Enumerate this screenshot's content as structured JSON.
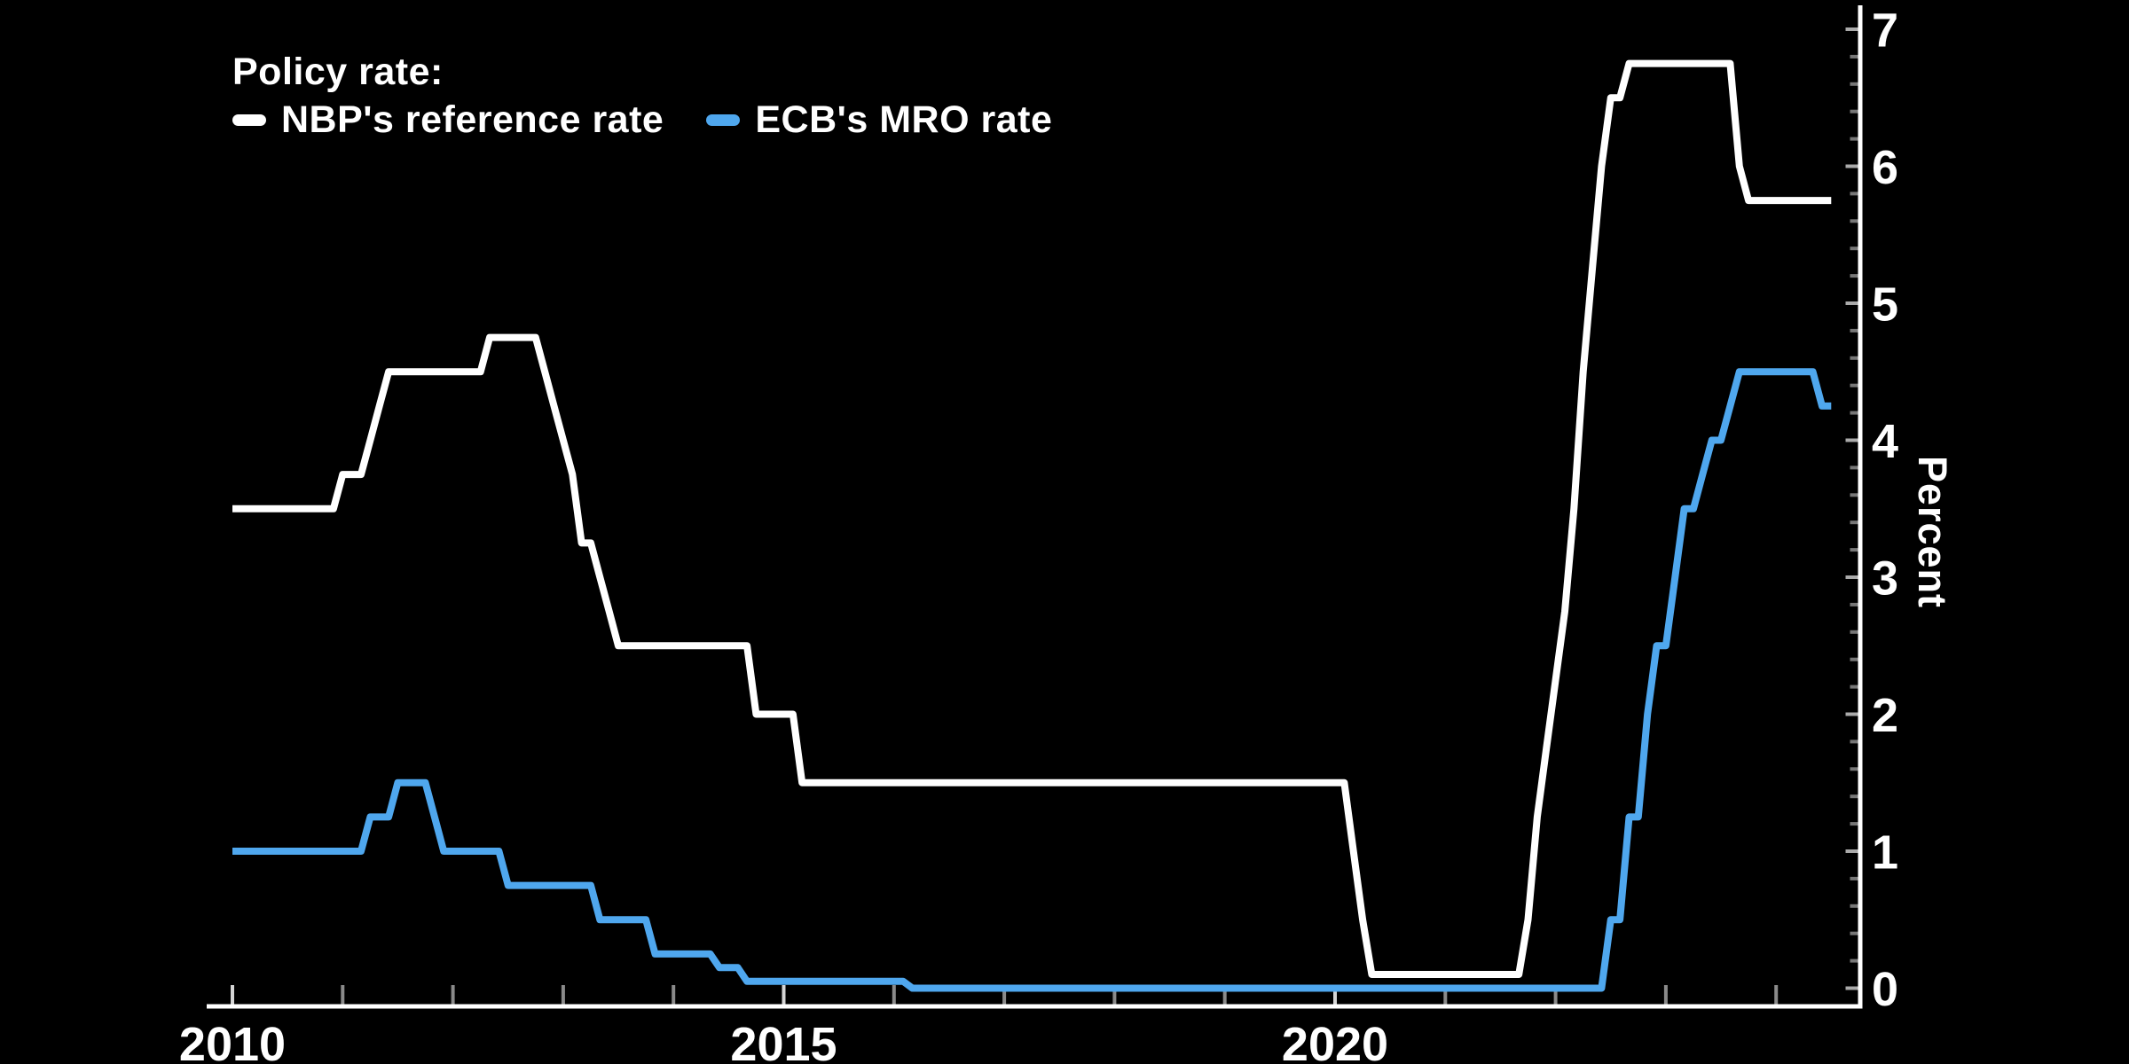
{
  "legend": {
    "title": "Policy rate:",
    "items": [
      {
        "label": "NBP's reference rate",
        "color": "#ffffff"
      },
      {
        "label": "ECB's MRO rate",
        "color": "#4fa7ee"
      }
    ]
  },
  "axes": {
    "y_label": "Percent",
    "y_tick_labels": [
      "0",
      "1",
      "2",
      "3",
      "4",
      "5",
      "6",
      "7"
    ],
    "x_tick_labels": [
      "2010",
      "2015",
      "2020"
    ]
  },
  "chart_data": {
    "type": "line",
    "title": "Policy rate:",
    "ylabel": "Percent",
    "ylim": [
      0,
      7
    ],
    "y_major_step": 1,
    "y_minor_step": 0.2,
    "x_years_start": 2010,
    "x_years_end": 2024,
    "x_labeled_years": [
      2010,
      2015,
      2020
    ],
    "x_end_decimal": 2024.5,
    "legend_position": "top-left",
    "grid": false,
    "background": "#000000",
    "axis_color": "#ffffff",
    "minor_tick_color": "#777777",
    "major_tick_color": "#aaaaaa",
    "series": [
      {
        "name": "NBP's reference rate",
        "color": "#ffffff",
        "rate_changes": [
          [
            "2010-01",
            3.5
          ],
          [
            "2011-01",
            3.75
          ],
          [
            "2011-04",
            4.0
          ],
          [
            "2011-05",
            4.25
          ],
          [
            "2011-06",
            4.5
          ],
          [
            "2012-05",
            4.75
          ],
          [
            "2012-11",
            4.5
          ],
          [
            "2012-12",
            4.25
          ],
          [
            "2013-01",
            4.0
          ],
          [
            "2013-02",
            3.75
          ],
          [
            "2013-03",
            3.25
          ],
          [
            "2013-05",
            3.0
          ],
          [
            "2013-06",
            2.75
          ],
          [
            "2013-07",
            2.5
          ],
          [
            "2014-10",
            2.0
          ],
          [
            "2015-03",
            1.5
          ],
          [
            "2020-03",
            1.0
          ],
          [
            "2020-04",
            0.5
          ],
          [
            "2020-05",
            0.1
          ],
          [
            "2021-10",
            0.5
          ],
          [
            "2021-11",
            1.25
          ],
          [
            "2021-12",
            1.75
          ],
          [
            "2022-01",
            2.25
          ],
          [
            "2022-02",
            2.75
          ],
          [
            "2022-03",
            3.5
          ],
          [
            "2022-04",
            4.5
          ],
          [
            "2022-05",
            5.25
          ],
          [
            "2022-06",
            6.0
          ],
          [
            "2022-07",
            6.5
          ],
          [
            "2022-09",
            6.75
          ],
          [
            "2023-09",
            6.0
          ],
          [
            "2023-10",
            5.75
          ]
        ]
      },
      {
        "name": "ECB's MRO rate",
        "color": "#4fa7ee",
        "rate_changes": [
          [
            "2010-01",
            1.0
          ],
          [
            "2011-04",
            1.25
          ],
          [
            "2011-07",
            1.5
          ],
          [
            "2011-11",
            1.25
          ],
          [
            "2011-12",
            1.0
          ],
          [
            "2012-07",
            0.75
          ],
          [
            "2013-05",
            0.5
          ],
          [
            "2013-11",
            0.25
          ],
          [
            "2014-06",
            0.15
          ],
          [
            "2014-09",
            0.05
          ],
          [
            "2016-03",
            0.0
          ],
          [
            "2022-07",
            0.5
          ],
          [
            "2022-09",
            1.25
          ],
          [
            "2022-11",
            2.0
          ],
          [
            "2022-12",
            2.5
          ],
          [
            "2023-02",
            3.0
          ],
          [
            "2023-03",
            3.5
          ],
          [
            "2023-05",
            3.75
          ],
          [
            "2023-06",
            4.0
          ],
          [
            "2023-08",
            4.25
          ],
          [
            "2023-09",
            4.5
          ],
          [
            "2024-06",
            4.25
          ]
        ]
      }
    ]
  }
}
